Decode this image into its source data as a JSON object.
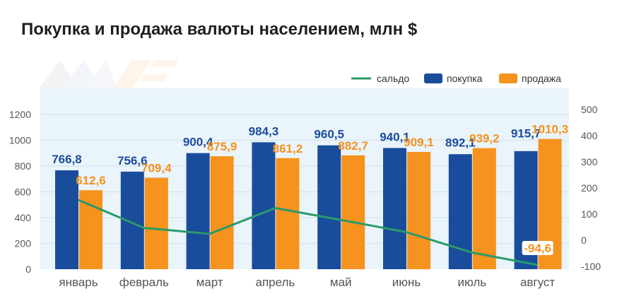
{
  "chart_data": {
    "type": "bar",
    "title": "Покупка и продажа валюты населением, млн $",
    "categories": [
      "январь",
      "февраль",
      "март",
      "апрель",
      "май",
      "июнь",
      "июль",
      "август"
    ],
    "series": [
      {
        "name": "покупка",
        "type": "bar",
        "axis": "left",
        "color": "#1a4c9c",
        "values": [
          766.8,
          756.6,
          900.4,
          984.3,
          960.5,
          940.1,
          892.1,
          915.7
        ],
        "labels": [
          "766,8",
          "756,6",
          "900,4",
          "984,3",
          "960,5",
          "940,1",
          "892,1",
          "915,7"
        ]
      },
      {
        "name": "продажа",
        "type": "bar",
        "axis": "left",
        "color": "#f6921e",
        "values": [
          612.6,
          709.4,
          875.9,
          861.2,
          882.7,
          909.1,
          939.2,
          1010.3
        ],
        "labels": [
          "612,6",
          "709,4",
          "875,9",
          "861,2",
          "882,7",
          "909,1",
          "939,2",
          "1010,3"
        ]
      },
      {
        "name": "сальдо",
        "type": "line",
        "axis": "right",
        "color": "#2a9a6a",
        "values": [
          154.2,
          47.2,
          24.5,
          123.1,
          77.8,
          31.0,
          -47.1,
          -94.6
        ],
        "last_label": "-94,6"
      }
    ],
    "legend_order": [
      "сальдо",
      "покупка",
      "продажа"
    ],
    "legend_position": "top-right",
    "y_left": {
      "ylim": [
        0,
        1200
      ],
      "ticks": [
        "0",
        "200",
        "400",
        "600",
        "800",
        "1000",
        "1200"
      ]
    },
    "y_right": {
      "ylim": [
        -100,
        500
      ],
      "ticks": [
        "-100",
        "0",
        "100",
        "200",
        "300",
        "400",
        "500"
      ]
    },
    "grid": true
  }
}
